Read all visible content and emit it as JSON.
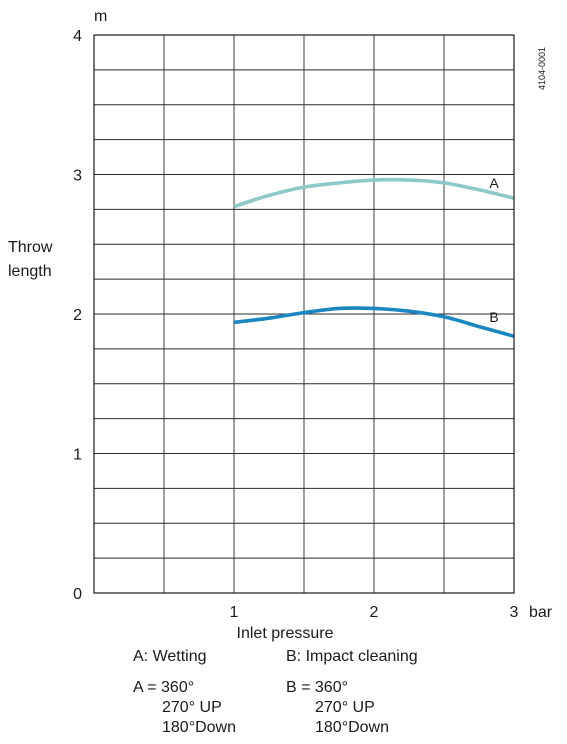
{
  "chart_data": {
    "type": "line",
    "title": "",
    "xlabel": "Inlet pressure",
    "x_unit": "bar",
    "ylabel": [
      "Throw",
      "length"
    ],
    "y_unit": "m",
    "xlim": [
      0,
      3
    ],
    "ylim": [
      0,
      4
    ],
    "x_ticks": [
      "1",
      "2",
      "3"
    ],
    "y_ticks": [
      "0",
      "1",
      "2",
      "3",
      "4"
    ],
    "grid": true,
    "code": "4104-0001",
    "series": [
      {
        "name": "A",
        "color": "#8ec8c8",
        "x": [
          1.0,
          1.25,
          1.5,
          1.75,
          2.0,
          2.25,
          2.5,
          2.75,
          3.0
        ],
        "y": [
          2.77,
          2.85,
          2.91,
          2.94,
          2.96,
          2.96,
          2.94,
          2.89,
          2.83
        ]
      },
      {
        "name": "B",
        "color": "#1b86c0",
        "x": [
          1.0,
          1.25,
          1.5,
          1.75,
          2.0,
          2.25,
          2.5,
          2.75,
          3.0
        ],
        "y": [
          1.94,
          1.97,
          2.01,
          2.04,
          2.04,
          2.02,
          1.98,
          1.91,
          1.84
        ]
      }
    ]
  },
  "legend": {
    "a_desc": "A: Wetting",
    "b_desc": "B: Impact cleaning",
    "a_lines": [
      "A = 360°",
      "270° UP",
      "180°Down"
    ],
    "b_lines": [
      "B = 360°",
      "270° UP",
      "180°Down"
    ]
  }
}
